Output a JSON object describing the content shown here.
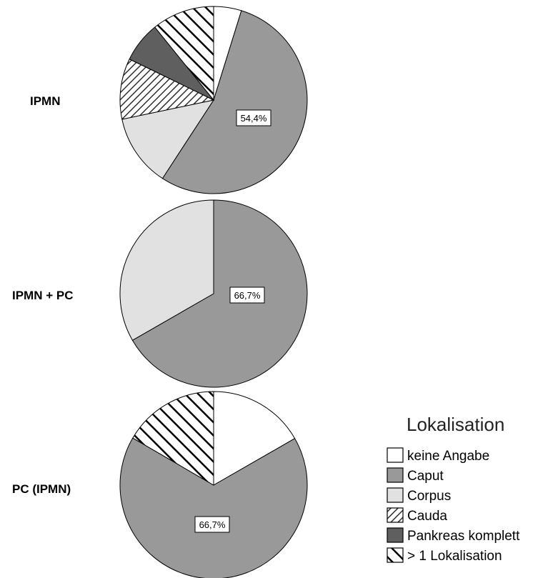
{
  "chart_data": [
    {
      "type": "pie",
      "title": "IPMN",
      "categories": [
        "keine Angabe",
        "Caput",
        "Corpus",
        "Cauda",
        "Pankreas komplett",
        "> 1 Lokalisation"
      ],
      "values": [
        4.8,
        54.4,
        12.5,
        10.5,
        7.0,
        10.8
      ],
      "data_labels": [
        "",
        "54,4%",
        "",
        "",
        "",
        ""
      ]
    },
    {
      "type": "pie",
      "title": "IPMN + PC",
      "categories": [
        "keine Angabe",
        "Caput",
        "Corpus",
        "Cauda",
        "Pankreas komplett",
        "> 1 Lokalisation"
      ],
      "values": [
        0,
        66.7,
        33.3,
        0,
        0,
        0
      ],
      "data_labels": [
        "",
        "66,7%",
        "",
        "",
        "",
        ""
      ]
    },
    {
      "type": "pie",
      "title": "PC (IPMN)",
      "categories": [
        "keine Angabe",
        "Caput",
        "Corpus",
        "Cauda",
        "Pankreas komplett",
        "> 1 Lokalisation"
      ],
      "values": [
        16.7,
        66.7,
        0,
        0,
        0,
        16.6
      ],
      "data_labels": [
        "",
        "66,7%",
        "",
        "",
        "",
        ""
      ]
    }
  ],
  "legend": {
    "title": "Lokalisation",
    "placement": "bottom-right",
    "items": [
      {
        "label": "keine Angabe",
        "fill": "#ffffff",
        "pattern": "none"
      },
      {
        "label": "Caput",
        "fill": "#999999",
        "pattern": "none"
      },
      {
        "label": "Corpus",
        "fill": "#e1e1e1",
        "pattern": "none"
      },
      {
        "label": "Cauda",
        "fill": "#ffffff",
        "pattern": "hatch-dense"
      },
      {
        "label": "Pankreas komplett",
        "fill": "#5f5f5f",
        "pattern": "none"
      },
      {
        "label": "> 1 Lokalisation",
        "fill": "#ffffff",
        "pattern": "hatch-wide"
      }
    ]
  }
}
